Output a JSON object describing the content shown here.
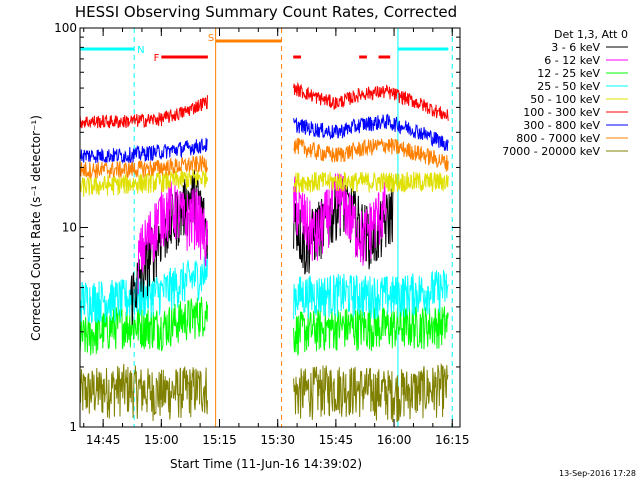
{
  "chart_data": {
    "type": "line",
    "title": "HESSI Observing Summary Count Rates, Corrected",
    "xlabel": "Start Time (11-Jun-16 14:39:02)",
    "ylabel": "Corrected Count Rate (s⁻¹ detector⁻¹)",
    "yscale": "log",
    "ylim": [
      1,
      100
    ],
    "xlim": [
      "14:39:02",
      "16:17:00"
    ],
    "x_ticks": [
      "14:45",
      "15:00",
      "15:15",
      "15:30",
      "15:45",
      "16:00",
      "16:15"
    ],
    "y_ticks": [
      "1",
      "10",
      "100"
    ],
    "legend_title": "Det 1,3, Att 0",
    "legend_position": "right",
    "timestamp": "13-Sep-2016 17:28",
    "flags": [
      {
        "label": "N",
        "color": "#00ffff",
        "segments": [
          [
            "14:39",
            "14:53"
          ],
          [
            "16:01",
            "16:14"
          ]
        ]
      },
      {
        "label": "F",
        "color": "#ff0000",
        "segments": [
          [
            "15:00",
            "15:12"
          ],
          [
            "15:34",
            "15:36"
          ],
          [
            "15:51",
            "15:53"
          ],
          [
            "15:56",
            "15:59"
          ]
        ]
      },
      {
        "label": "S",
        "color": "#ff8000",
        "segments": [
          [
            "15:14",
            "15:31"
          ]
        ]
      }
    ],
    "vlines": [
      {
        "time": "14:53",
        "color": "#00ffff",
        "style": "dashed"
      },
      {
        "time": "15:14",
        "color": "#ff8000",
        "style": "solid"
      },
      {
        "time": "15:31",
        "color": "#ff8000",
        "style": "dashed"
      },
      {
        "time": "16:01",
        "color": "#00ffff",
        "style": "solid"
      },
      {
        "time": "16:15",
        "color": "#00ffff",
        "style": "dashed"
      }
    ],
    "data_gaps": [
      [
        "15:13",
        "15:33"
      ]
    ],
    "series": [
      {
        "name": "3 - 6 keV",
        "color": "#000000",
        "x": [
          "14:52",
          "14:56",
          "15:00",
          "15:03",
          "15:06",
          "15:09",
          "15:12",
          "15:34",
          "15:37",
          "15:40",
          "15:43",
          "15:46",
          "15:49",
          "15:52",
          "15:55",
          "15:58",
          "16:00"
        ],
        "values": [
          4.5,
          6.5,
          9.5,
          11,
          13,
          15,
          9,
          12,
          8,
          10,
          11,
          14,
          12,
          10,
          9,
          11,
          13
        ]
      },
      {
        "name": "6 - 12 keV",
        "color": "#ff00ff",
        "x": [
          "14:54",
          "14:58",
          "15:00",
          "15:03",
          "15:06",
          "15:09",
          "15:12",
          "15:34",
          "15:37",
          "15:40",
          "15:43",
          "15:46",
          "15:49",
          "15:52",
          "15:55",
          "15:58"
        ],
        "values": [
          7,
          10,
          12,
          13,
          11,
          12,
          8,
          14,
          11,
          9,
          12,
          15,
          11,
          9,
          11,
          13
        ]
      },
      {
        "name": "12 - 25 keV",
        "color": "#00ff00",
        "x": [
          "14:39",
          "14:50",
          "15:00",
          "15:12",
          "15:34",
          "15:45",
          "16:00",
          "16:14"
        ],
        "values": [
          2.8,
          3.3,
          3.2,
          3.8,
          3.0,
          3.2,
          3.2,
          3.3
        ]
      },
      {
        "name": "25 - 50 keV",
        "color": "#00ffff",
        "x": [
          "14:39",
          "14:50",
          "15:00",
          "15:12",
          "15:34",
          "15:45",
          "16:00",
          "16:14"
        ],
        "values": [
          4.4,
          4.4,
          4.8,
          6.0,
          4.6,
          4.7,
          4.6,
          5.0
        ]
      },
      {
        "name": "50 - 100 keV",
        "color": "#e0e000",
        "x": [
          "14:39",
          "14:50",
          "15:00",
          "15:12",
          "15:34",
          "15:45",
          "16:00",
          "16:14"
        ],
        "values": [
          16,
          16.5,
          17,
          18,
          17,
          17,
          17,
          17
        ]
      },
      {
        "name": "100 - 300 keV",
        "color": "#ff0000",
        "x": [
          "14:39",
          "14:50",
          "15:00",
          "15:06",
          "15:12",
          "15:34",
          "15:40",
          "15:45",
          "15:52",
          "15:58",
          "16:05",
          "16:14"
        ],
        "values": [
          34,
          34,
          35,
          38,
          43,
          50,
          45,
          42,
          47,
          48,
          43,
          36
        ]
      },
      {
        "name": "300 - 800 keV",
        "color": "#0000ff",
        "x": [
          "14:39",
          "14:50",
          "15:00",
          "15:06",
          "15:12",
          "15:34",
          "15:40",
          "15:45",
          "15:52",
          "15:58",
          "16:05",
          "16:14"
        ],
        "values": [
          23,
          23,
          24,
          25,
          26,
          33,
          31,
          30,
          33,
          34,
          31,
          26
        ]
      },
      {
        "name": "800 - 7000 keV",
        "color": "#ff8000",
        "x": [
          "14:39",
          "14:50",
          "15:00",
          "15:06",
          "15:12",
          "15:34",
          "15:40",
          "15:45",
          "15:52",
          "15:58",
          "16:05",
          "16:14"
        ],
        "values": [
          19.5,
          19.5,
          20,
          20.5,
          21,
          26,
          24,
          23,
          25,
          26,
          24,
          21
        ]
      },
      {
        "name": "7000 - 20000 keV",
        "color": "#808000",
        "x": [
          "14:39",
          "14:50",
          "15:00",
          "15:12",
          "15:34",
          "15:45",
          "16:00",
          "16:14"
        ],
        "values": [
          1.5,
          1.6,
          1.5,
          1.6,
          1.5,
          1.6,
          1.5,
          1.6
        ]
      }
    ]
  }
}
